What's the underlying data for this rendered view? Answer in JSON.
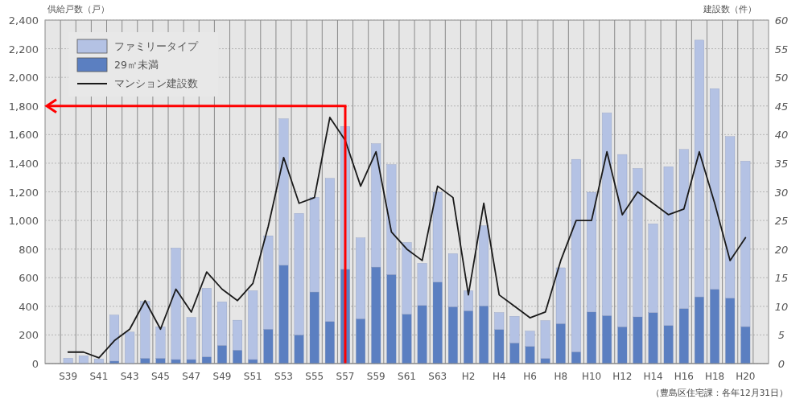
{
  "chart_data": {
    "type": "bar",
    "stacked": true,
    "ylabel": "供給戸数（戸）",
    "y2label": "建設数（件）",
    "annotations": [
      "（豊島区住宅課：各年12月31日）"
    ],
    "categories": [
      "S39",
      null,
      "S41",
      null,
      "S43",
      null,
      "S45",
      null,
      "S47",
      null,
      "S49",
      null,
      "S51",
      null,
      "S53",
      null,
      "S55",
      null,
      "S57",
      null,
      "S59",
      null,
      "S61",
      null,
      "S63",
      null,
      "H2",
      null,
      "H4",
      null,
      "H6",
      null,
      "H8",
      null,
      "H10",
      null,
      "H12",
      null,
      "H14",
      null,
      "H16",
      null,
      "H18",
      null,
      "H20"
    ],
    "series": [
      {
        "name": "29㎡未満",
        "color": "#5b7fc1",
        "values": [
          0,
          0,
          0,
          17,
          null,
          37,
          37,
          28,
          28,
          47,
          127,
          94,
          28,
          240,
          687,
          200,
          500,
          294,
          659,
          313,
          674,
          622,
          345,
          406,
          569,
          397,
          369,
          403,
          238,
          144,
          120,
          36,
          279,
          82,
          360,
          335,
          257,
          326,
          356,
          266,
          384,
          466,
          519,
          457,
          258
        ]
      },
      {
        "name": "ファミリータイプ",
        "color": "#b4c2e4",
        "values": [
          37,
          54,
          32,
          322,
          220,
          397,
          220,
          779,
          294,
          479,
          304,
          209,
          481,
          653,
          1023,
          849,
          661,
          1000,
          998,
          565,
          862,
          768,
          501,
          294,
          628,
          371,
          140,
          560,
          118,
          186,
          107,
          264,
          390,
          1345,
          837,
          1416,
          1204,
          1037,
          620,
          1109,
          1112,
          1794,
          1402,
          1129,
          1156
        ]
      },
      {
        "name": "マンション建設数",
        "type": "line",
        "axis": "y2",
        "color": "#1a1a1a",
        "values": [
          2,
          2,
          1,
          4,
          6,
          11,
          6,
          13,
          9,
          16,
          13,
          11,
          14,
          24,
          36,
          28,
          29,
          43,
          39,
          31,
          37,
          23,
          20,
          18,
          31,
          29,
          12,
          28,
          12,
          10,
          8,
          9,
          18,
          25,
          25,
          37,
          26,
          30,
          28,
          26,
          27,
          37,
          28,
          18,
          22
        ]
      }
    ],
    "ylim": [
      0,
      2400
    ],
    "yticks": [
      {
        "value": 0,
        "label": "0"
      },
      {
        "value": 200,
        "label": "200"
      },
      {
        "value": 400,
        "label": "400"
      },
      {
        "value": 600,
        "label": "600"
      },
      {
        "value": 800,
        "label": "800"
      },
      {
        "value": 1000,
        "label": "1,000"
      },
      {
        "value": 1200,
        "label": "1,200"
      },
      {
        "value": 1400,
        "label": "1,400"
      },
      {
        "value": 1600,
        "label": "1,600"
      },
      {
        "value": 1800,
        "label": "1,800"
      },
      {
        "value": 2000,
        "label": "2,000"
      },
      {
        "value": 2200,
        "label": "2,200"
      },
      {
        "value": 2400,
        "label": "2,400"
      }
    ],
    "y2lim": [
      0,
      60
    ],
    "y2ticks": [
      0,
      5,
      10,
      15,
      20,
      25,
      30,
      35,
      40,
      45,
      50,
      55,
      60
    ],
    "ref_lines": [
      {
        "axis": "y",
        "value": 1800,
        "color": "#ff0000"
      },
      {
        "axis": "x",
        "value": "S57",
        "color": "#ff0000"
      }
    ],
    "grid": true,
    "legend": "top left"
  }
}
